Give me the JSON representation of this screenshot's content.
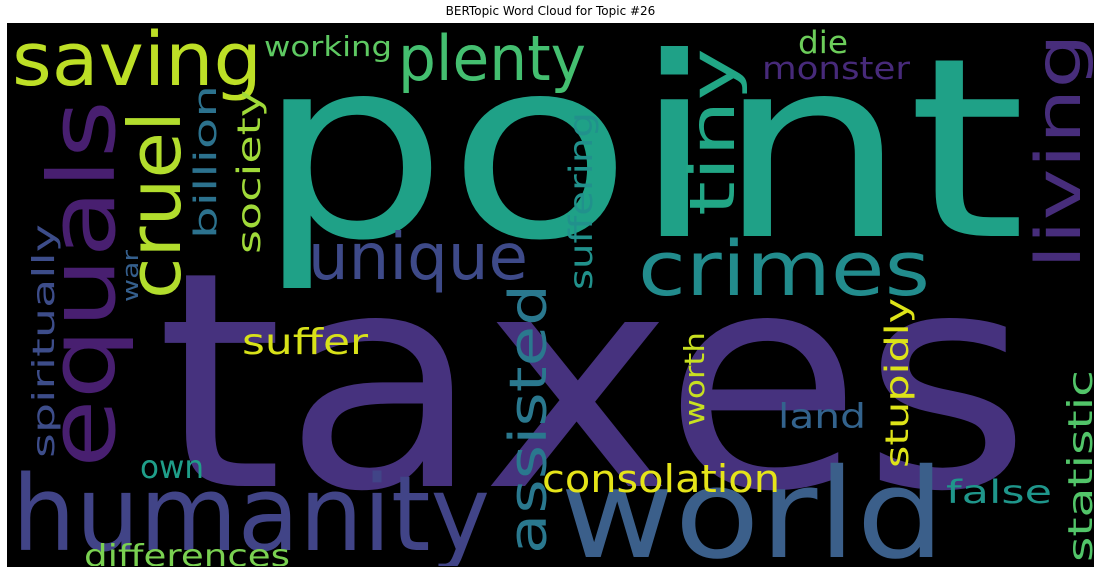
{
  "title": "BERTopic Word Cloud for Topic #26",
  "background_color": "#000000",
  "palette": "viridis",
  "words": [
    {
      "text": "taxes",
      "color": "#46327e"
    },
    {
      "text": "point",
      "color": "#1fa187"
    },
    {
      "text": "world",
      "color": "#3b5f8a"
    },
    {
      "text": "humanity",
      "color": "#414487"
    },
    {
      "text": "equals",
      "color": "#481f70"
    },
    {
      "text": "saving",
      "color": "#bddf26"
    },
    {
      "text": "plenty",
      "color": "#44bf70"
    },
    {
      "text": "crimes",
      "color": "#228c8d"
    },
    {
      "text": "cruel",
      "color": "#b2dd2d"
    },
    {
      "text": "unique",
      "color": "#3e4a89"
    },
    {
      "text": "tiny",
      "color": "#21a685"
    },
    {
      "text": "living",
      "color": "#472d7b"
    },
    {
      "text": "assisted",
      "color": "#2a788e"
    },
    {
      "text": "consolation",
      "color": "#e5e419"
    },
    {
      "text": "suffer",
      "color": "#d8e219"
    },
    {
      "text": "working",
      "color": "#5ec962"
    },
    {
      "text": "die",
      "color": "#6ccd5a"
    },
    {
      "text": "monster",
      "color": "#472a7a"
    },
    {
      "text": "society",
      "color": "#a0da39"
    },
    {
      "text": "billion",
      "color": "#2c728e"
    },
    {
      "text": "suffering",
      "color": "#21918c"
    },
    {
      "text": "spiritually",
      "color": "#3d4d8a"
    },
    {
      "text": "war",
      "color": "#355f8d"
    },
    {
      "text": "own",
      "color": "#1f9e89"
    },
    {
      "text": "differences",
      "color": "#7ad151"
    },
    {
      "text": "worth",
      "color": "#c8e020"
    },
    {
      "text": "stupidly",
      "color": "#dde318"
    },
    {
      "text": "land",
      "color": "#33638d"
    },
    {
      "text": "false",
      "color": "#1f968b"
    },
    {
      "text": "statistic",
      "color": "#52c569"
    }
  ]
}
